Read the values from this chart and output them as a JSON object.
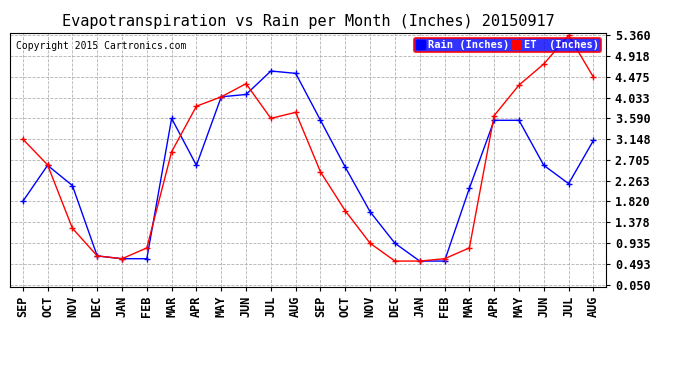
{
  "title": "Evapotranspiration vs Rain per Month (Inches) 20150917",
  "copyright": "Copyright 2015 Cartronics.com",
  "x_labels": [
    "SEP",
    "OCT",
    "NOV",
    "DEC",
    "JAN",
    "FEB",
    "MAR",
    "APR",
    "MAY",
    "JUN",
    "JUL",
    "AUG",
    "SEP",
    "OCT",
    "NOV",
    "DEC",
    "JAN",
    "FEB",
    "MAR",
    "APR",
    "MAY",
    "JUN",
    "JUL",
    "AUG"
  ],
  "rain_values": [
    1.82,
    2.59,
    2.16,
    0.66,
    0.6,
    0.6,
    3.59,
    2.59,
    4.05,
    4.1,
    4.6,
    4.55,
    3.55,
    2.55,
    1.6,
    0.93,
    0.55,
    0.55,
    2.1,
    3.55,
    3.55,
    2.59,
    2.2,
    3.12
  ],
  "et_values": [
    3.15,
    2.6,
    1.25,
    0.66,
    0.6,
    0.83,
    2.88,
    3.85,
    4.05,
    4.33,
    3.59,
    3.72,
    2.45,
    1.62,
    0.93,
    0.55,
    0.55,
    0.6,
    0.83,
    3.65,
    4.3,
    4.75,
    5.36,
    4.47
  ],
  "rain_color": "blue",
  "et_color": "red",
  "bg_color": "#ffffff",
  "grid_color": "#aaaaaa",
  "y_ticks": [
    0.05,
    0.493,
    0.935,
    1.378,
    1.82,
    2.263,
    2.705,
    3.148,
    3.59,
    4.033,
    4.475,
    4.918,
    5.36
  ],
  "title_fontsize": 11,
  "tick_fontsize": 8.5,
  "legend_rain_label": "Rain (Inches)",
  "legend_et_label": "ET  (Inches)",
  "ymin": 0.0,
  "ymax": 5.41
}
